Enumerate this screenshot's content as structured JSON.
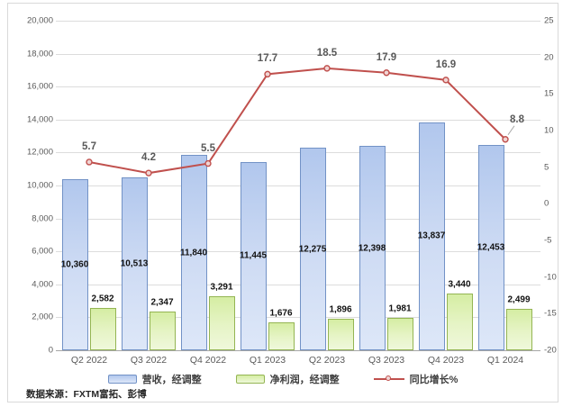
{
  "chart": {
    "source_note": "数据来源：FXTM富拓、彭博"
  },
  "colors": {
    "revenue_bar_border": "#7292c6",
    "revenue_bar_fill": "#c3d4f0",
    "net_profit_bar_border": "#94b553",
    "net_profit_bar_fill": "#e2f2b9",
    "growth_line": "#c0504d",
    "gridline": "#dcdcdc",
    "axis_text": "#595959"
  },
  "chart_data": {
    "type": "bar",
    "subtype": "combo-bar-line",
    "title": "",
    "xlabel": "",
    "ylabel": "",
    "grid": true,
    "legend_position": "bottom",
    "categories": [
      "Q2 2022",
      "Q3 2022",
      "Q4 2022",
      "Q1 2023",
      "Q2 2023",
      "Q3 2023",
      "Q4 2023",
      "Q1 2024"
    ],
    "series": [
      {
        "name": "营收，经调整",
        "type": "bar",
        "axis": "left",
        "values": [
          10360,
          10513,
          11840,
          11445,
          12275,
          12398,
          13837,
          12453
        ]
      },
      {
        "name": "净利润，经调整",
        "type": "bar",
        "axis": "left",
        "values": [
          2582,
          2347,
          3291,
          1676,
          1896,
          1981,
          3440,
          2499
        ]
      },
      {
        "name": "同比增长%",
        "type": "line",
        "axis": "right",
        "values": [
          5.7,
          4.2,
          5.5,
          17.7,
          18.5,
          17.9,
          16.9,
          8.8
        ]
      }
    ],
    "left_axis": {
      "min": 0,
      "max": 20000,
      "step": 2000
    },
    "right_axis": {
      "min": -20,
      "max": 25,
      "step": 5
    }
  }
}
